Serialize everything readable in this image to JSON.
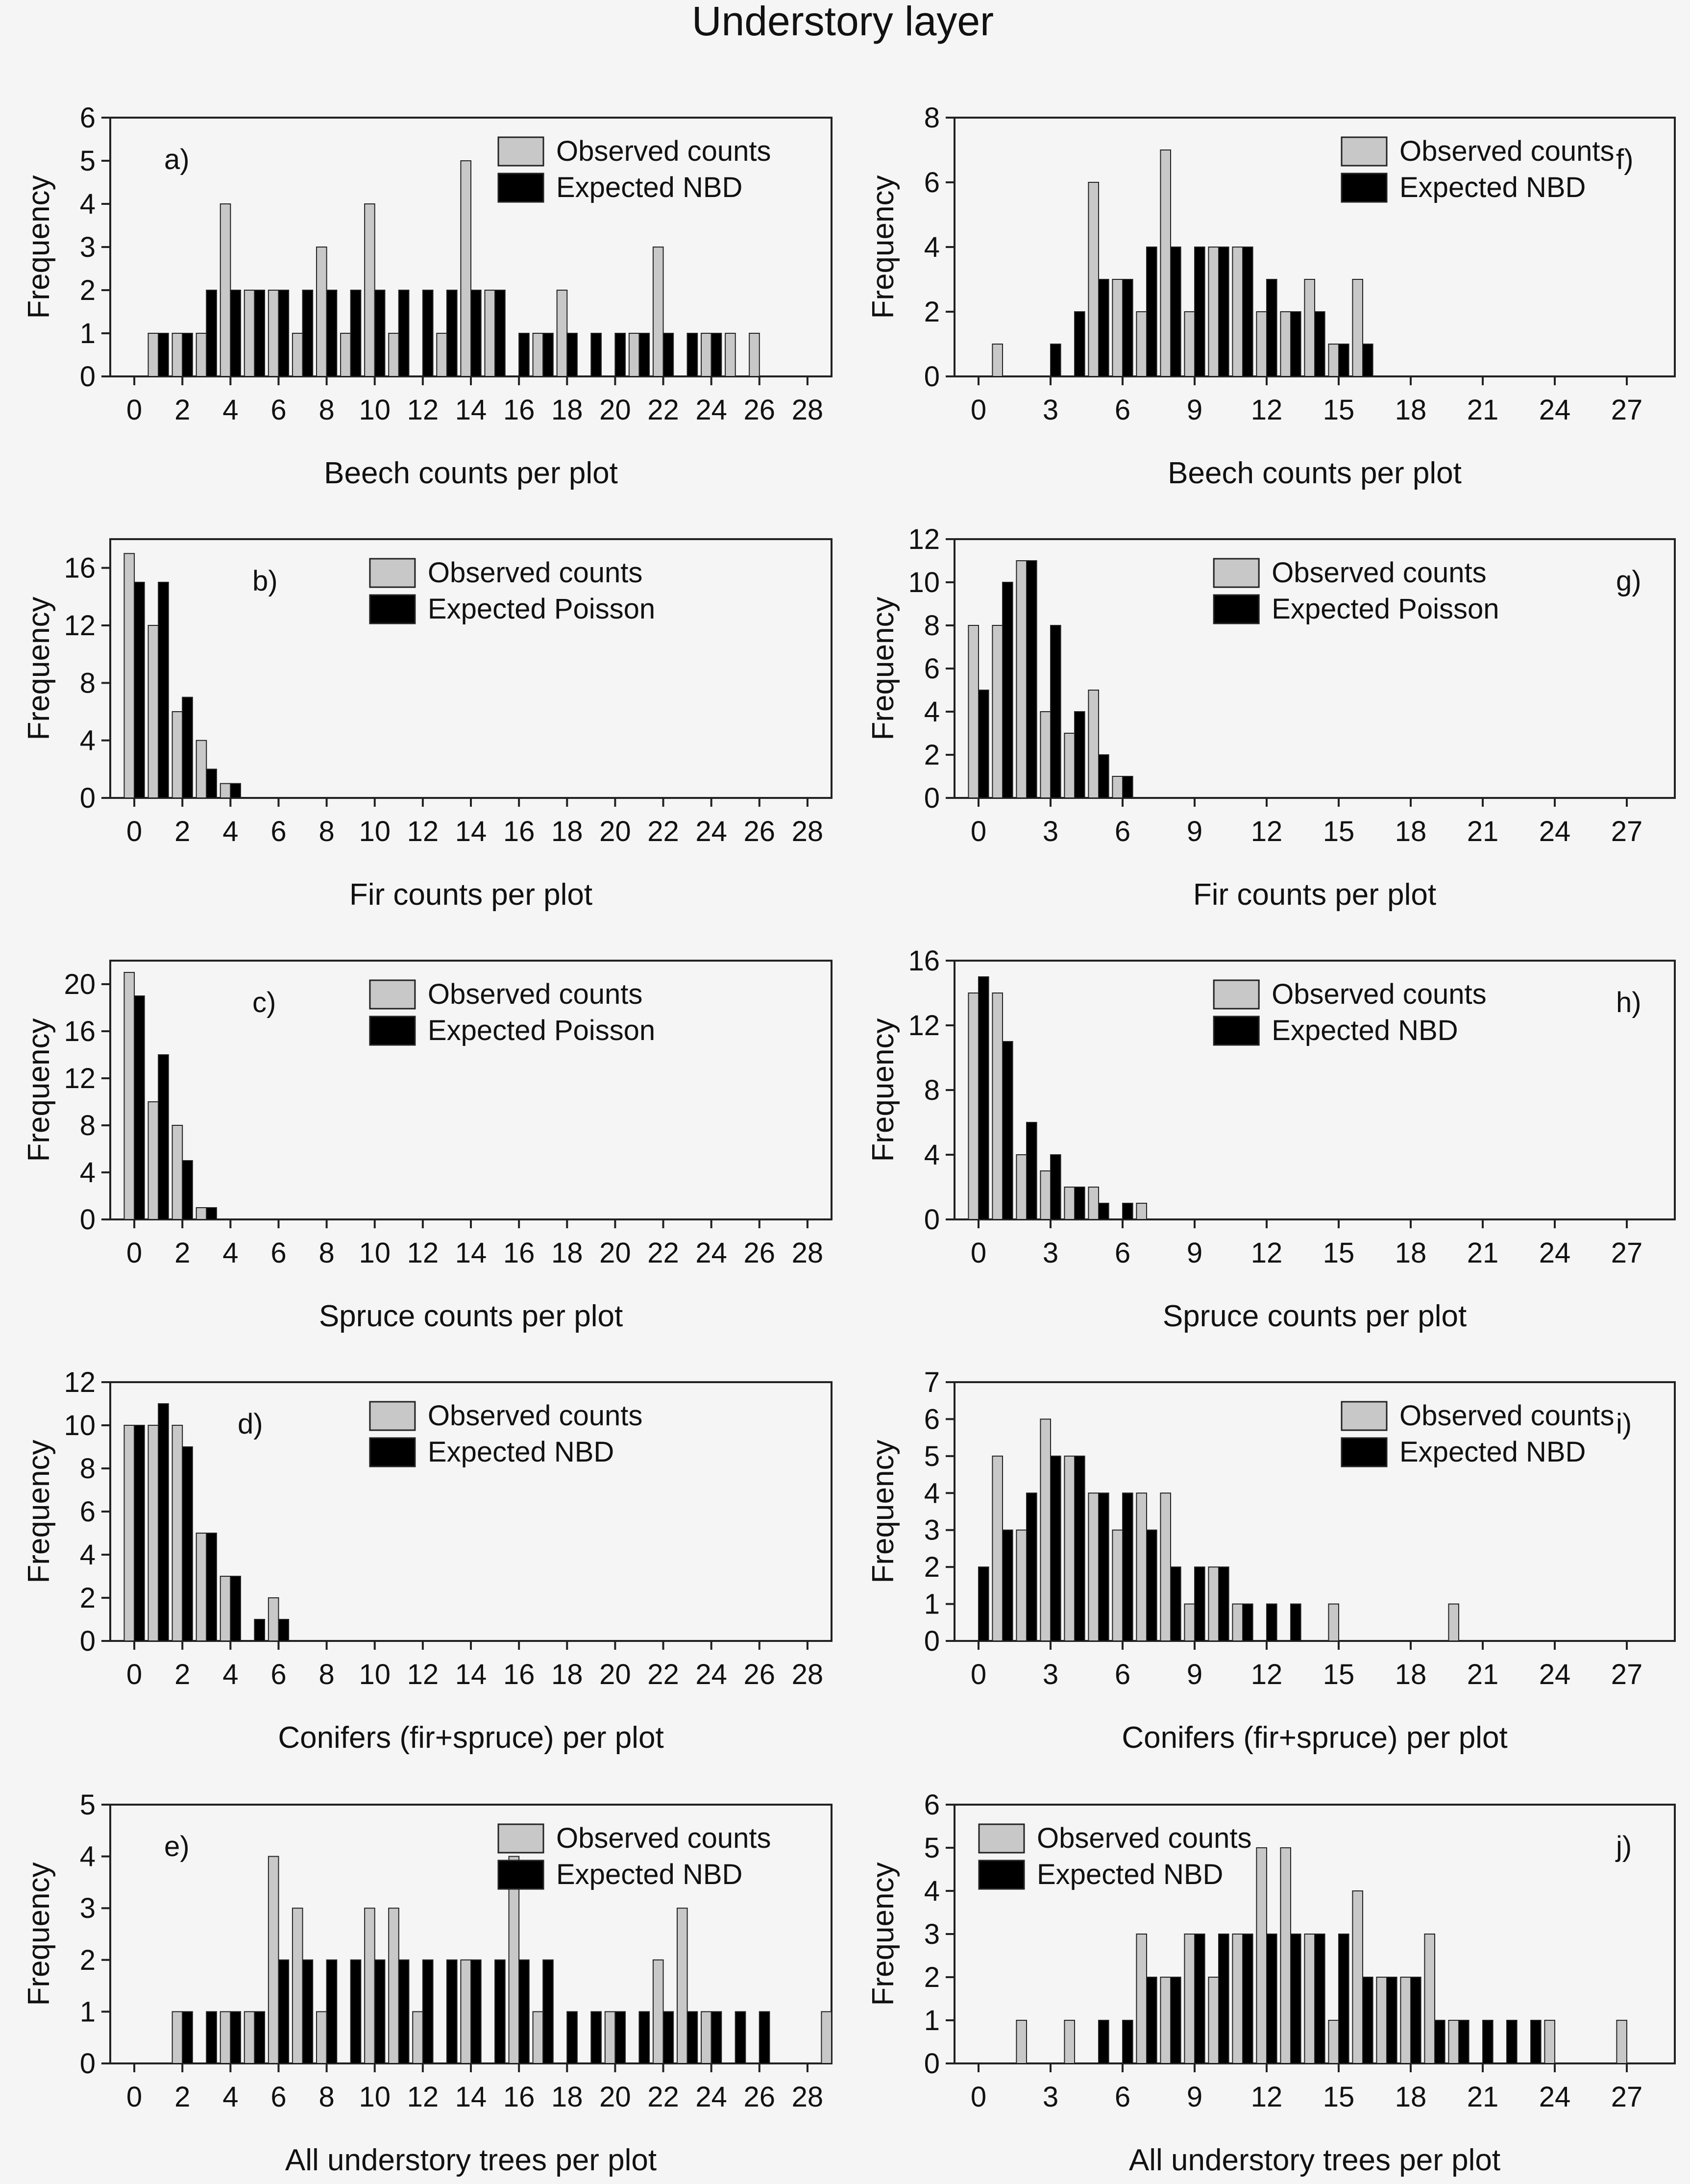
{
  "figure_title": "Understory layer",
  "colors": {
    "observed": "#c8c8c8",
    "expected": "#000000",
    "background": "#f5f5f5",
    "axis": "#222222"
  },
  "chart_data": [
    {
      "id": "a",
      "label": "a)",
      "type": "bar",
      "ylabel": "Frequency",
      "xlabel": "Beech counts per plot",
      "xlim": [
        -1,
        29
      ],
      "xticks": [
        0,
        2,
        4,
        6,
        8,
        10,
        12,
        14,
        16,
        18,
        20,
        22,
        24,
        26,
        28
      ],
      "ylim": [
        0,
        6
      ],
      "yticks": [
        0,
        1,
        2,
        3,
        4,
        5,
        6
      ],
      "legend": [
        "Observed counts",
        "Expected NBD"
      ],
      "legend_position": "top-right",
      "label_position": "top-left",
      "series": [
        {
          "name": "Observed counts",
          "x": [
            1,
            2,
            3,
            4,
            5,
            6,
            7,
            8,
            9,
            10,
            11,
            13,
            14,
            15,
            17,
            18,
            21,
            22,
            24,
            25,
            26
          ],
          "values": [
            1,
            1,
            1,
            4,
            2,
            2,
            1,
            3,
            1,
            4,
            1,
            1,
            5,
            2,
            1,
            2,
            1,
            3,
            1,
            1,
            1
          ]
        },
        {
          "name": "Expected NBD",
          "x": [
            1,
            2,
            3,
            4,
            5,
            6,
            7,
            8,
            9,
            10,
            11,
            12,
            13,
            14,
            15,
            16,
            17,
            18,
            19,
            20,
            21,
            22,
            23,
            24
          ],
          "values": [
            1,
            1,
            2,
            2,
            2,
            2,
            2,
            2,
            2,
            2,
            2,
            2,
            2,
            2,
            2,
            1,
            1,
            1,
            1,
            1,
            1,
            1,
            1,
            1
          ]
        }
      ]
    },
    {
      "id": "f",
      "label": "f)",
      "type": "bar",
      "ylabel": "Frequency",
      "xlabel": "Beech counts per plot",
      "xlim": [
        -1,
        29
      ],
      "xticks": [
        0,
        3,
        6,
        9,
        12,
        15,
        18,
        21,
        24,
        27
      ],
      "ylim": [
        0,
        8
      ],
      "yticks": [
        0,
        2,
        4,
        6,
        8
      ],
      "legend": [
        "Observed counts",
        "Expected NBD"
      ],
      "legend_position": "top-right",
      "label_position": "top-right",
      "series": [
        {
          "name": "Observed counts",
          "x": [
            1,
            5,
            6,
            7,
            8,
            9,
            10,
            11,
            12,
            13,
            14,
            15,
            16
          ],
          "values": [
            1,
            6,
            3,
            2,
            7,
            2,
            4,
            4,
            2,
            2,
            3,
            1,
            3
          ]
        },
        {
          "name": "Expected NBD",
          "x": [
            3,
            4,
            5,
            6,
            7,
            8,
            9,
            10,
            11,
            12,
            13,
            14,
            15,
            16
          ],
          "values": [
            1,
            2,
            3,
            3,
            4,
            4,
            4,
            4,
            4,
            3,
            2,
            2,
            1,
            1
          ]
        }
      ]
    },
    {
      "id": "b",
      "label": "b)",
      "type": "bar",
      "ylabel": "Frequency",
      "xlabel": "Fir counts per plot",
      "xlim": [
        -1,
        29
      ],
      "xticks": [
        0,
        2,
        4,
        6,
        8,
        10,
        12,
        14,
        16,
        18,
        20,
        22,
        24,
        26,
        28
      ],
      "ylim": [
        0,
        18
      ],
      "yticks": [
        0,
        4,
        8,
        12,
        16
      ],
      "legend": [
        "Observed counts",
        "Expected Poisson"
      ],
      "legend_position": "top-center",
      "label_position": "top-left",
      "series": [
        {
          "name": "Observed counts",
          "x": [
            0,
            1,
            2,
            3,
            4
          ],
          "values": [
            17,
            12,
            6,
            4,
            1
          ]
        },
        {
          "name": "Expected Poisson",
          "x": [
            0,
            1,
            2,
            3,
            4
          ],
          "values": [
            15,
            15,
            7,
            2,
            1
          ]
        }
      ]
    },
    {
      "id": "g",
      "label": "g)",
      "type": "bar",
      "ylabel": "Frequency",
      "xlabel": "Fir counts per plot",
      "xlim": [
        -1,
        29
      ],
      "xticks": [
        0,
        3,
        6,
        9,
        12,
        15,
        18,
        21,
        24,
        27
      ],
      "ylim": [
        0,
        12
      ],
      "yticks": [
        0,
        2,
        4,
        6,
        8,
        10,
        12
      ],
      "legend": [
        "Observed counts",
        "Expected Poisson"
      ],
      "legend_position": "top-center",
      "label_position": "top-right",
      "series": [
        {
          "name": "Observed counts",
          "x": [
            0,
            1,
            2,
            3,
            4,
            5,
            6
          ],
          "values": [
            8,
            8,
            11,
            4,
            3,
            5,
            1
          ]
        },
        {
          "name": "Expected Poisson",
          "x": [
            0,
            1,
            2,
            3,
            4,
            5,
            6
          ],
          "values": [
            5,
            10,
            11,
            8,
            4,
            2,
            1
          ]
        }
      ]
    },
    {
      "id": "c",
      "label": "c)",
      "type": "bar",
      "ylabel": "Frequency",
      "xlabel": "Spruce counts per plot",
      "xlim": [
        -1,
        29
      ],
      "xticks": [
        0,
        2,
        4,
        6,
        8,
        10,
        12,
        14,
        16,
        18,
        20,
        22,
        24,
        26,
        28
      ],
      "ylim": [
        0,
        22
      ],
      "yticks": [
        0,
        4,
        8,
        12,
        16,
        20
      ],
      "legend": [
        "Observed counts",
        "Expected Poisson"
      ],
      "legend_position": "top-center",
      "label_position": "top-left",
      "series": [
        {
          "name": "Observed counts",
          "x": [
            0,
            1,
            2,
            3
          ],
          "values": [
            21,
            10,
            8,
            1
          ]
        },
        {
          "name": "Expected Poisson",
          "x": [
            0,
            1,
            2,
            3
          ],
          "values": [
            19,
            14,
            5,
            1
          ]
        }
      ]
    },
    {
      "id": "h",
      "label": "h)",
      "type": "bar",
      "ylabel": "Frequency",
      "xlabel": "Spruce counts per plot",
      "xlim": [
        -1,
        29
      ],
      "xticks": [
        0,
        3,
        6,
        9,
        12,
        15,
        18,
        21,
        24,
        27
      ],
      "ylim": [
        0,
        16
      ],
      "yticks": [
        0,
        4,
        8,
        12,
        16
      ],
      "legend": [
        "Observed counts",
        "Expected NBD"
      ],
      "legend_position": "top-center",
      "label_position": "top-right",
      "series": [
        {
          "name": "Observed counts",
          "x": [
            0,
            1,
            2,
            3,
            4,
            5,
            7
          ],
          "values": [
            14,
            14,
            4,
            3,
            2,
            2,
            1
          ]
        },
        {
          "name": "Expected NBD",
          "x": [
            0,
            1,
            2,
            3,
            4,
            5,
            6
          ],
          "values": [
            15,
            11,
            6,
            4,
            2,
            1,
            1
          ]
        }
      ]
    },
    {
      "id": "d",
      "label": "d)",
      "type": "bar",
      "ylabel": "Frequency",
      "xlabel": "Conifers (fir+spruce) per plot",
      "xlim": [
        -1,
        29
      ],
      "xticks": [
        0,
        2,
        4,
        6,
        8,
        10,
        12,
        14,
        16,
        18,
        20,
        22,
        24,
        26,
        28
      ],
      "ylim": [
        0,
        12
      ],
      "yticks": [
        0,
        2,
        4,
        6,
        8,
        10,
        12
      ],
      "legend": [
        "Observed counts",
        "Expected NBD"
      ],
      "legend_position": "top-center",
      "label_position": "top-left",
      "series": [
        {
          "name": "Observed counts",
          "x": [
            0,
            1,
            2,
            3,
            4,
            6
          ],
          "values": [
            10,
            10,
            10,
            5,
            3,
            2
          ]
        },
        {
          "name": "Expected NBD",
          "x": [
            0,
            1,
            2,
            3,
            4,
            5,
            6
          ],
          "values": [
            10,
            11,
            9,
            5,
            3,
            1,
            1
          ]
        }
      ]
    },
    {
      "id": "i",
      "label": "i)",
      "type": "bar",
      "ylabel": "Frequency",
      "xlabel": "Conifers (fir+spruce) per plot",
      "xlim": [
        -1,
        29
      ],
      "xticks": [
        0,
        3,
        6,
        9,
        12,
        15,
        18,
        21,
        24,
        27
      ],
      "ylim": [
        0,
        7
      ],
      "yticks": [
        0,
        1,
        2,
        3,
        4,
        5,
        6,
        7
      ],
      "legend": [
        "Observed counts",
        "Expected NBD"
      ],
      "legend_position": "top-right",
      "label_position": "top-right",
      "series": [
        {
          "name": "Observed counts",
          "x": [
            1,
            2,
            3,
            4,
            5,
            6,
            7,
            8,
            9,
            10,
            11,
            15,
            20
          ],
          "values": [
            5,
            3,
            6,
            5,
            4,
            3,
            4,
            4,
            1,
            2,
            1,
            1,
            1
          ]
        },
        {
          "name": "Expected NBD",
          "x": [
            0,
            1,
            2,
            3,
            4,
            5,
            6,
            7,
            8,
            9,
            10,
            11,
            12,
            13
          ],
          "values": [
            2,
            3,
            4,
            5,
            5,
            4,
            4,
            3,
            2,
            2,
            2,
            1,
            1,
            1
          ]
        }
      ]
    },
    {
      "id": "e",
      "label": "e)",
      "type": "bar",
      "ylabel": "Frequency",
      "xlabel": "All understory trees per plot",
      "xlim": [
        -1,
        29
      ],
      "xticks": [
        0,
        2,
        4,
        6,
        8,
        10,
        12,
        14,
        16,
        18,
        20,
        22,
        24,
        26,
        28
      ],
      "ylim": [
        0,
        5
      ],
      "yticks": [
        0,
        1,
        2,
        3,
        4,
        5
      ],
      "legend": [
        "Observed counts",
        "Expected NBD"
      ],
      "legend_position": "top-right",
      "label_position": "top-left",
      "series": [
        {
          "name": "Observed counts",
          "x": [
            2,
            4,
            5,
            6,
            7,
            8,
            10,
            11,
            12,
            14,
            16,
            17,
            20,
            22,
            23,
            24,
            29
          ],
          "values": [
            1,
            1,
            1,
            4,
            3,
            1,
            3,
            3,
            1,
            2,
            4,
            1,
            1,
            2,
            3,
            1,
            1
          ]
        },
        {
          "name": "Expected NBD",
          "x": [
            2,
            3,
            4,
            5,
            6,
            7,
            8,
            9,
            10,
            11,
            12,
            13,
            14,
            15,
            16,
            17,
            18,
            19,
            20,
            21,
            22,
            23,
            24,
            25,
            26
          ],
          "values": [
            1,
            1,
            1,
            1,
            2,
            2,
            2,
            2,
            2,
            2,
            2,
            2,
            2,
            2,
            2,
            2,
            1,
            1,
            1,
            1,
            1,
            1,
            1,
            1,
            1
          ]
        }
      ]
    },
    {
      "id": "j",
      "label": "j)",
      "type": "bar",
      "ylabel": "Frequency",
      "xlabel": "All understory trees per plot",
      "xlim": [
        -1,
        29
      ],
      "xticks": [
        0,
        3,
        6,
        9,
        12,
        15,
        18,
        21,
        24,
        27
      ],
      "ylim": [
        0,
        6
      ],
      "yticks": [
        0,
        1,
        2,
        3,
        4,
        5,
        6
      ],
      "legend": [
        "Observed counts",
        "Expected NBD"
      ],
      "legend_position": "top-left",
      "label_position": "top-right",
      "series": [
        {
          "name": "Observed counts",
          "x": [
            2,
            4,
            7,
            8,
            9,
            10,
            11,
            12,
            13,
            14,
            15,
            16,
            17,
            18,
            19,
            20,
            24,
            27
          ],
          "values": [
            1,
            1,
            3,
            2,
            3,
            2,
            3,
            5,
            5,
            3,
            1,
            4,
            2,
            2,
            3,
            1,
            1,
            1
          ]
        },
        {
          "name": "Expected NBD",
          "x": [
            5,
            6,
            7,
            8,
            9,
            10,
            11,
            12,
            13,
            14,
            15,
            16,
            17,
            18,
            19,
            20,
            21,
            22,
            23
          ],
          "values": [
            1,
            1,
            2,
            2,
            3,
            3,
            3,
            3,
            3,
            3,
            3,
            2,
            2,
            2,
            1,
            1,
            1,
            1,
            1
          ]
        }
      ]
    }
  ]
}
